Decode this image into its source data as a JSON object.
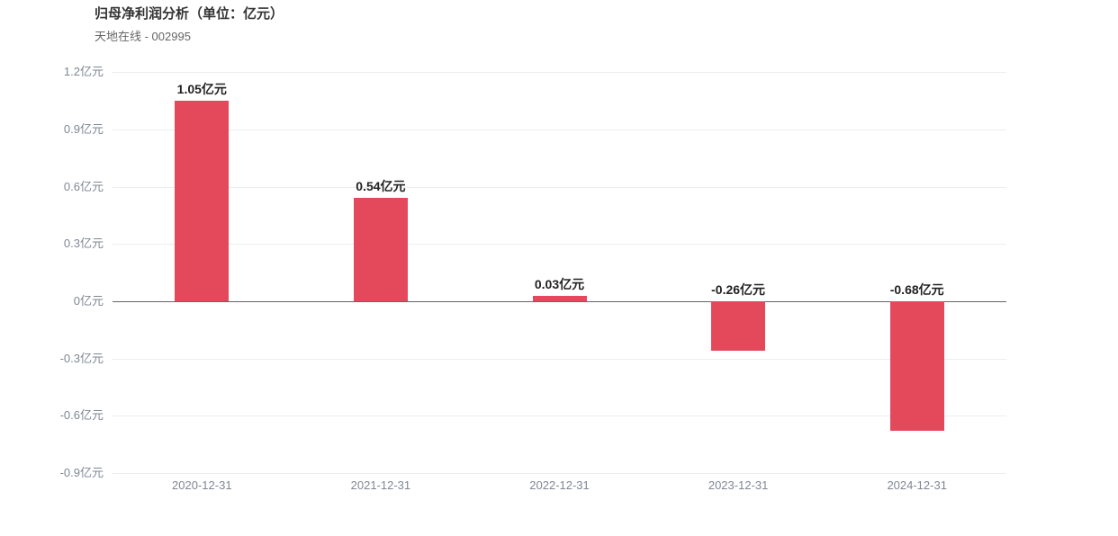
{
  "header": {
    "title": "归母净利润分析（单位：亿元）",
    "subtitle": "天地在线 - 002995"
  },
  "chart_data": {
    "type": "bar",
    "title": "归母净利润分析（单位：亿元）",
    "subtitle": "天地在线 - 002995",
    "company": "天地在线",
    "stock_code": "002995",
    "unit": "亿元",
    "categories": [
      "2020-12-31",
      "2021-12-31",
      "2022-12-31",
      "2023-12-31",
      "2024-12-31"
    ],
    "values": [
      1.05,
      0.54,
      0.03,
      -0.26,
      -0.68
    ],
    "data_labels": [
      "1.05亿元",
      "0.54亿元",
      "0.03亿元",
      "-0.26亿元",
      "-0.68亿元"
    ],
    "ylim": [
      -0.9,
      1.2
    ],
    "ytick_step": 0.3,
    "ytick_labels": [
      "1.2亿元",
      "0.9亿元",
      "0.6亿元",
      "0.3亿元",
      "0亿元",
      "-0.3亿元",
      "-0.6亿元",
      "-0.9亿元"
    ],
    "xlabel": "",
    "ylabel": "",
    "grid": true,
    "legend_position": "none",
    "colors": {
      "bar": "#e4495b",
      "grid_line": "#ebedf0",
      "zero_line": "#666666",
      "tick_label": "#7f8794",
      "data_label": "#222222",
      "title": "#333333",
      "subtitle": "#666666",
      "background": "#ffffff"
    }
  }
}
